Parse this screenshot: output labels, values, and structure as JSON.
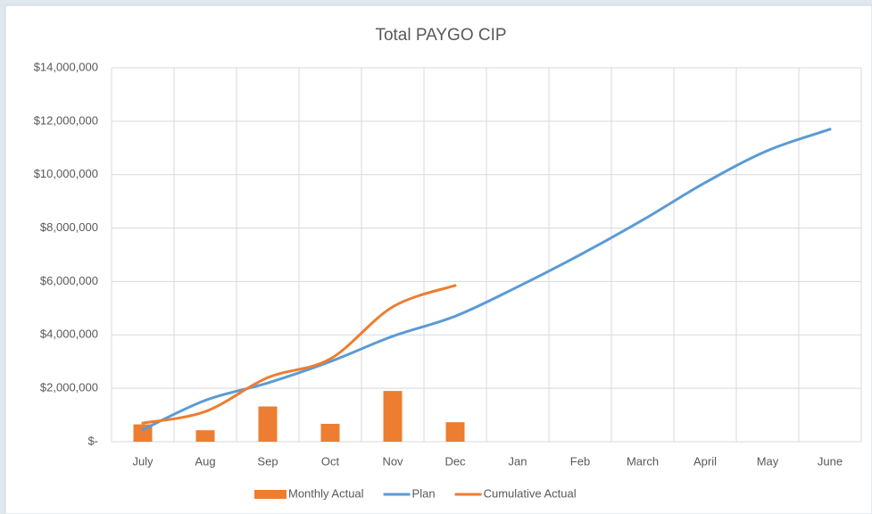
{
  "chart_data": {
    "type": "combo",
    "title": "Total PAYGO CIP",
    "categories": [
      "July",
      "Aug",
      "Sep",
      "Oct",
      "Nov",
      "Dec",
      "Jan",
      "Feb",
      "March",
      "April",
      "May",
      "June"
    ],
    "series": [
      {
        "name": "Monthly Actual",
        "type": "bar",
        "color": "#ed7d31",
        "values": [
          650000,
          430000,
          1320000,
          670000,
          1900000,
          730000,
          null,
          null,
          null,
          null,
          null,
          null
        ]
      },
      {
        "name": "Plan",
        "type": "line",
        "color": "#5b9bd5",
        "values": [
          450000,
          1550000,
          2200000,
          3000000,
          3950000,
          4700000,
          5800000,
          7000000,
          8300000,
          9700000,
          10900000,
          11700000
        ]
      },
      {
        "name": "Cumulative Actual",
        "type": "line",
        "color": "#ed7d31",
        "values": [
          700000,
          1130000,
          2400000,
          3100000,
          5050000,
          5850000,
          null,
          null,
          null,
          null,
          null,
          null
        ]
      }
    ],
    "ylim": [
      0,
      14000000
    ],
    "yticks": [
      {
        "value": 0,
        "label": "$-"
      },
      {
        "value": 2000000,
        "label": "$2,000,000"
      },
      {
        "value": 4000000,
        "label": "$4,000,000"
      },
      {
        "value": 6000000,
        "label": "$6,000,000"
      },
      {
        "value": 8000000,
        "label": "$8,000,000"
      },
      {
        "value": 10000000,
        "label": "$10,000,000"
      },
      {
        "value": 12000000,
        "label": "$12,000,000"
      },
      {
        "value": 14000000,
        "label": "$14,000,000"
      }
    ],
    "grid": true,
    "legend": "bottom"
  }
}
